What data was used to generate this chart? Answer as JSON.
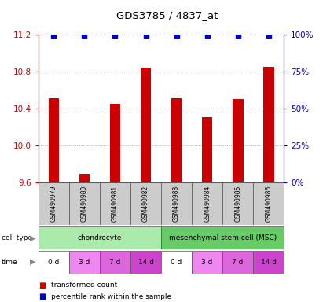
{
  "title": "GDS3785 / 4837_at",
  "samples": [
    "GSM490979",
    "GSM490980",
    "GSM490981",
    "GSM490982",
    "GSM490983",
    "GSM490984",
    "GSM490985",
    "GSM490986"
  ],
  "bar_values": [
    10.51,
    9.7,
    10.45,
    10.84,
    10.51,
    10.31,
    10.5,
    10.85
  ],
  "ylim_left": [
    9.6,
    11.2
  ],
  "ylim_right": [
    0,
    100
  ],
  "yticks_left": [
    9.6,
    10.0,
    10.4,
    10.8,
    11.2
  ],
  "yticks_right": [
    0,
    25,
    50,
    75,
    100
  ],
  "bar_color": "#cc0000",
  "dot_color": "#0000cc",
  "cell_types": [
    {
      "label": "chondrocyte",
      "start": 0,
      "end": 4,
      "color": "#aaeaaa"
    },
    {
      "label": "mesenchymal stem cell (MSC)",
      "start": 4,
      "end": 8,
      "color": "#66cc66"
    }
  ],
  "time_labels": [
    "0 d",
    "3 d",
    "7 d",
    "14 d",
    "0 d",
    "3 d",
    "7 d",
    "14 d"
  ],
  "time_colors": [
    "#ffffff",
    "#ee88ee",
    "#dd66dd",
    "#cc44cc",
    "#ffffff",
    "#ee88ee",
    "#dd66dd",
    "#cc44cc"
  ],
  "cell_type_label": "cell type",
  "time_label": "time",
  "legend_bar_label": "transformed count",
  "legend_dot_label": "percentile rank within the sample",
  "background_color": "#ffffff",
  "left_axis_color": "#cc0000",
  "right_axis_color": "#0000cc"
}
